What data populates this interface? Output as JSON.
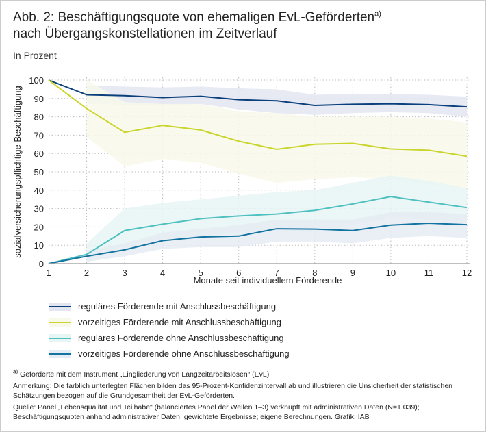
{
  "title": {
    "line1": "Abb. 2: Beschäftigungsquote von ehemaligen EvL-Geförderten",
    "sup": "a)",
    "line2": "nach Übergangskonstellationen im Zeitverlauf"
  },
  "subtitle": "In Prozent",
  "chart_data": {
    "type": "line",
    "xlabel": "Monate seit individuellem Förderende",
    "ylabel": "sozialversicherungspflichtige Beschäftigung",
    "x": [
      1,
      2,
      3,
      4,
      5,
      6,
      7,
      8,
      9,
      10,
      11,
      12
    ],
    "xlim": [
      1,
      12
    ],
    "ylim": [
      0,
      100
    ],
    "yticks": [
      0,
      10,
      20,
      30,
      40,
      50,
      60,
      70,
      80,
      90,
      100
    ],
    "grid": true,
    "legend": "bottom",
    "series": [
      {
        "name": "reguläres Förderende mit Anschlussbeschäftigung",
        "color": "#0b3f7c",
        "band_color": "#e3e6f1",
        "values": [
          100,
          92,
          91.5,
          90.5,
          91.2,
          89.3,
          88.7,
          86.2,
          86.8,
          87.1,
          86.6,
          85.4
        ],
        "ci_upper": [
          100,
          97,
          96.5,
          96,
          96.5,
          95.5,
          95,
          92,
          92.5,
          92.5,
          92,
          91
        ],
        "ci_lower": [
          100,
          87,
          86.5,
          86,
          87,
          84,
          82,
          81,
          82,
          82.5,
          82,
          80
        ]
      },
      {
        "name": "vorzeitiges Förderende mit Anschlussbeschäftigung",
        "color": "#c9d52b",
        "band_color": "#f8f9ea",
        "values": [
          100,
          84.5,
          71.5,
          75.3,
          72.8,
          66.7,
          62.3,
          65,
          65.5,
          62.5,
          61.8,
          58.5
        ],
        "ci_upper": [
          100,
          100,
          88,
          87,
          87,
          83,
          82,
          80,
          80,
          80,
          79,
          77
        ],
        "ci_lower": [
          100,
          69,
          53,
          57,
          55,
          49,
          44,
          46,
          47,
          46,
          43,
          41
        ]
      },
      {
        "name": "reguläres Förderende ohne Anschlussbeschäftigung",
        "color": "#4fc0c0",
        "band_color": "#e7f5f5",
        "values": [
          0,
          5,
          18,
          21.5,
          24.5,
          26,
          27,
          29,
          32.5,
          36.5,
          33.5,
          30.5
        ],
        "ci_upper": [
          0,
          11,
          30,
          33,
          35,
          37,
          39,
          40,
          44,
          48,
          45,
          41
        ],
        "ci_lower": [
          0,
          1,
          10,
          13,
          15,
          17,
          18,
          17,
          21,
          25,
          24,
          22
        ]
      },
      {
        "name": "vorzeitiges Förderende ohne Anschlussbeschäftigung",
        "color": "#1272a0",
        "band_color": "#e5ecf3",
        "values": [
          0,
          4,
          7.5,
          12.5,
          14.5,
          15,
          19,
          18.8,
          18,
          21,
          22,
          21.2
        ],
        "ci_upper": [
          0,
          7,
          11,
          17,
          19,
          21,
          24,
          24,
          24,
          28,
          28,
          27
        ],
        "ci_lower": [
          0,
          1,
          4,
          8,
          9,
          9,
          12,
          12,
          11,
          14,
          15,
          14
        ]
      }
    ]
  },
  "notes": {
    "footnote_mark": "a)",
    "footnote": "Geförderte mit dem Instrument „Eingliederung von Langzeitarbeitslosen“ (EvL)",
    "anmerkung": "Anmerkung: Die farblich unterlegten Flächen bilden das 95-Prozent-Konfidenzintervall ab und illustrieren die Unsicherheit der statistischen Schätzungen bezogen auf die Grundgesamtheit der EvL-Geförderten.",
    "quelle": "Quelle: Panel „Lebensqualität und Teilhabe\" (balanciertes Panel der Wellen 1–3) verknüpft mit administrativen Daten (N=1.039); Beschäftigungsquoten anhand administrativer Daten; gewichtete Ergebnisse; eigene Berechnungen. Grafik: IAB"
  }
}
